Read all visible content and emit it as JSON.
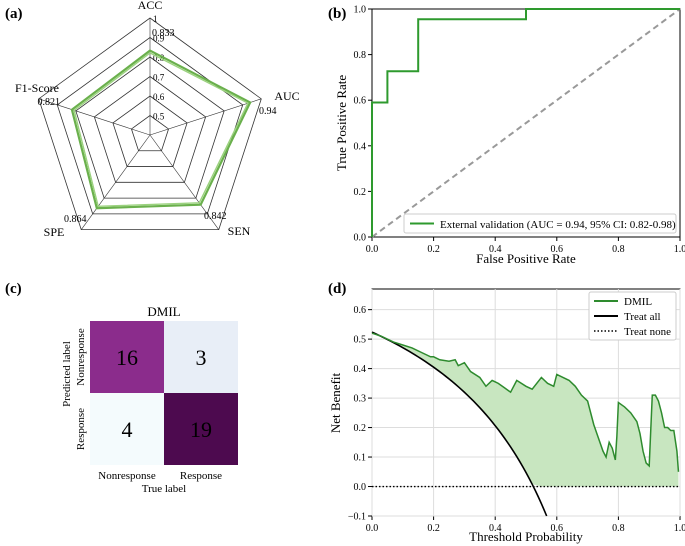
{
  "chart_data": [
    {
      "panel": "(a)",
      "type": "radar",
      "axes": [
        {
          "name": "ACC",
          "value": 0.833
        },
        {
          "name": "AUC",
          "value": 0.94
        },
        {
          "name": "SEN",
          "value": 0.842
        },
        {
          "name": "SPE",
          "value": 0.864
        },
        {
          "name": "F1-Score",
          "value": 0.821
        }
      ],
      "rings": [
        "0.5",
        "0.6",
        "0.7",
        "0.8",
        "0.9",
        "1"
      ],
      "value_labels": [
        "0.833",
        "0.94",
        "0.842",
        "0.864",
        "0.821"
      ],
      "color": "#6ab04c"
    },
    {
      "panel": "(b)",
      "type": "line",
      "title": "",
      "xlabel": "False Positive Rate",
      "ylabel": "True Positive Rate",
      "xlim": [
        0,
        1
      ],
      "ylim": [
        0,
        1
      ],
      "xticks": [
        "0.0",
        "0.2",
        "0.4",
        "0.6",
        "0.8",
        "1.0"
      ],
      "yticks": [
        "0.0",
        "0.2",
        "0.4",
        "0.6",
        "0.8",
        "1.0"
      ],
      "series": [
        {
          "name": "External validation (AUC = 0.94, 95% CI: 0.82-0.98)",
          "color": "#2e9a2e",
          "x": [
            0,
            0,
            0.05,
            0.05,
            0.15,
            0.15,
            0.5,
            0.5,
            1.0
          ],
          "y": [
            0,
            0.59,
            0.59,
            0.727,
            0.727,
            0.955,
            0.955,
            1.0,
            1.0
          ]
        }
      ],
      "reference_line": {
        "x": [
          0,
          1
        ],
        "y": [
          0,
          1
        ],
        "color": "#999999"
      },
      "legend": "bottom-right"
    },
    {
      "panel": "(c)",
      "type": "heatmap",
      "title": "DMIL",
      "xlabel": "True label",
      "ylabel": "Predicted label",
      "col_labels": [
        "Nonresponse",
        "Response"
      ],
      "row_labels": [
        "Nonresponse",
        "Response"
      ],
      "cells": [
        [
          16,
          3
        ],
        [
          4,
          19
        ]
      ],
      "cell_colors": [
        [
          "#8b2c8c",
          "#e8eef7"
        ],
        [
          "#f4fbfd",
          "#4d0a4f"
        ]
      ],
      "text_colors": [
        [
          "#ffffff",
          "#000000"
        ],
        [
          "#000000",
          "#ffffff"
        ]
      ]
    },
    {
      "panel": "(d)",
      "type": "line",
      "xlabel": "Threshold Probability",
      "ylabel": "Net Benefit",
      "xlim": [
        0,
        1
      ],
      "ylim": [
        -0.1,
        0.67
      ],
      "xticks": [
        "0.0",
        "0.2",
        "0.4",
        "0.6",
        "0.8",
        "1.0"
      ],
      "yticks": [
        "−0.1",
        "0.0",
        "0.1",
        "0.2",
        "0.3",
        "0.4",
        "0.5",
        "0.6"
      ],
      "ytick_values": [
        -0.1,
        0,
        0.1,
        0.2,
        0.3,
        0.4,
        0.5,
        0.6
      ],
      "xtick_values": [
        0,
        0.2,
        0.4,
        0.6,
        0.8,
        1.0
      ],
      "series": [
        {
          "name": "DMIL",
          "color": "#2e8b2e",
          "fill": "#c8e6c0",
          "x": [
            0,
            0.03,
            0.07,
            0.1,
            0.13,
            0.16,
            0.19,
            0.2,
            0.22,
            0.25,
            0.27,
            0.28,
            0.3,
            0.32,
            0.35,
            0.37,
            0.39,
            0.41,
            0.43,
            0.45,
            0.47,
            0.5,
            0.52,
            0.55,
            0.57,
            0.59,
            0.6,
            0.62,
            0.64,
            0.66,
            0.68,
            0.7,
            0.72,
            0.73,
            0.75,
            0.76,
            0.77,
            0.78,
            0.79,
            0.795,
            0.8,
            0.82,
            0.84,
            0.86,
            0.87,
            0.88,
            0.89,
            0.9,
            0.91,
            0.92,
            0.93,
            0.94,
            0.95,
            0.96,
            0.97,
            0.98,
            0.99,
            0.995
          ],
          "y": [
            0.52,
            0.51,
            0.49,
            0.48,
            0.47,
            0.455,
            0.44,
            0.44,
            0.43,
            0.425,
            0.43,
            0.41,
            0.42,
            0.39,
            0.37,
            0.34,
            0.36,
            0.35,
            0.335,
            0.32,
            0.36,
            0.34,
            0.33,
            0.37,
            0.35,
            0.34,
            0.38,
            0.37,
            0.36,
            0.34,
            0.31,
            0.29,
            0.21,
            0.18,
            0.12,
            0.1,
            0.15,
            0.13,
            0.09,
            0.17,
            0.285,
            0.27,
            0.25,
            0.22,
            0.18,
            0.12,
            0.08,
            0.07,
            0.31,
            0.31,
            0.29,
            0.25,
            0.2,
            0.2,
            0.19,
            0.19,
            0.12,
            0.05
          ]
        },
        {
          "name": "Treat all",
          "color": "#000000",
          "style": "solid"
        },
        {
          "name": "Treat none",
          "color": "#000000",
          "style": "dotted"
        }
      ],
      "treat_all_prevalence": 0.5238,
      "legend": "top-right"
    }
  ]
}
